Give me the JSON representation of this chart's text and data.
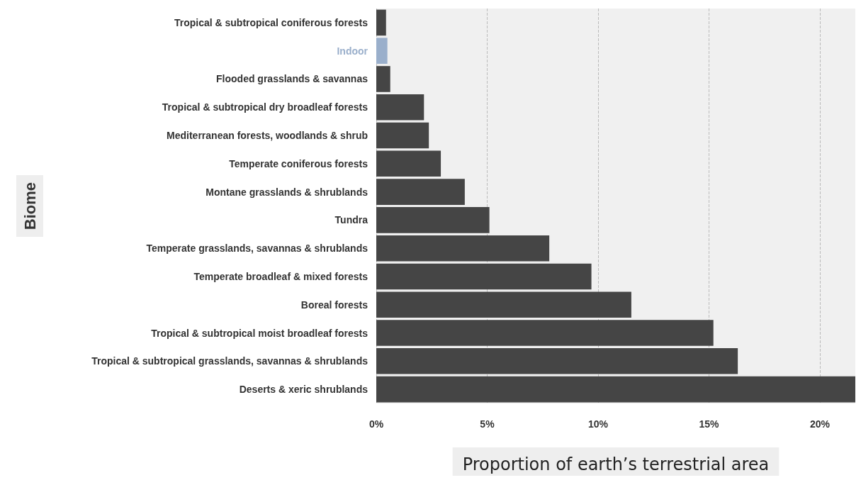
{
  "chart_data": {
    "type": "bar",
    "orientation": "horizontal",
    "xlabel": "Proportion of earth’s terrestrial area",
    "ylabel": "Biome",
    "categories": [
      "Tropical & subtropical coniferous forests",
      "Indoor",
      "Flooded grasslands & savannas",
      "Tropical & subtropical dry broadleaf forests",
      "Mediterranean forests, woodlands & shrub",
      "Temperate coniferous forests",
      "Montane grasslands & shrublands",
      "Tundra",
      "Temperate grasslands, savannas & shrublands",
      "Temperate broadleaf & mixed forests",
      "Boreal forests",
      "Tropical & subtropical moist broadleaf forests",
      "Tropical & subtropical grasslands, savannas & shrublands",
      "Deserts & xeric shrublands"
    ],
    "values": [
      0.44,
      0.5,
      0.63,
      2.15,
      2.37,
      2.91,
      3.99,
      5.1,
      7.8,
      9.7,
      11.5,
      15.2,
      16.3,
      21.6
    ],
    "color": "#454545",
    "colors": [
      "#454545",
      "#9aafcb",
      "#454545",
      "#454545",
      "#454545",
      "#454545",
      "#454545",
      "#454545",
      "#454545",
      "#454545",
      "#454545",
      "#454545",
      "#454545",
      "#454545"
    ],
    "xlim": [
      0,
      21.6
    ],
    "xticks": [
      {
        "value": 0,
        "label": "0%"
      },
      {
        "value": 5,
        "label": "5%"
      },
      {
        "value": 10,
        "label": "10%"
      },
      {
        "value": 15,
        "label": "15%"
      },
      {
        "value": 20,
        "label": "20%"
      }
    ],
    "grid": "x"
  }
}
